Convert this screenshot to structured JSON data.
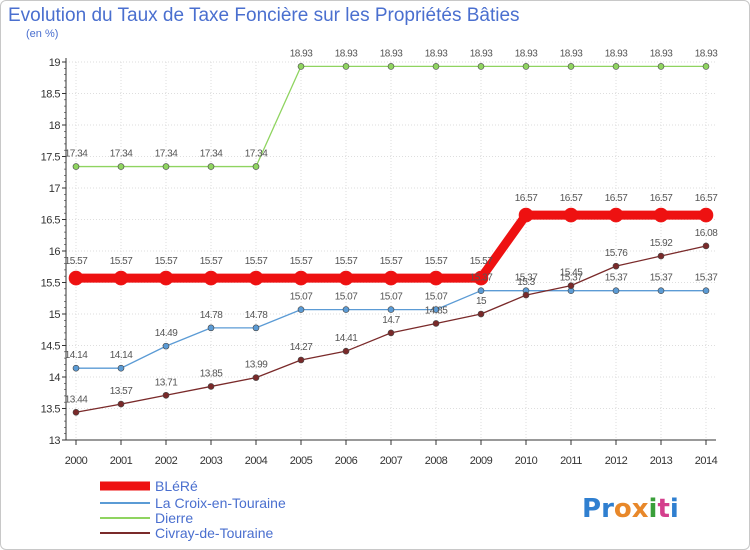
{
  "title": "Evolution du Taux de Taxe Foncière sur les Propriétés Bâties",
  "unit_label": "(en %)",
  "logo_text": "Proxiti",
  "chart_data": {
    "type": "line",
    "title": "Evolution du Taux de Taxe Foncière sur les Propriétés Bâties",
    "ylabel": "(en %)",
    "xlabel": "",
    "ylim": [
      13,
      19
    ],
    "yticks": [
      13,
      13.5,
      14,
      14.5,
      15,
      15.5,
      16,
      16.5,
      17,
      17.5,
      18,
      18.5,
      19
    ],
    "x": [
      2000,
      2001,
      2002,
      2003,
      2004,
      2005,
      2006,
      2007,
      2008,
      2009,
      2010,
      2011,
      2012,
      2013,
      2014
    ],
    "legend_position": "bottom-left",
    "series": [
      {
        "name": "BLéRé",
        "color": "#ee1111",
        "values": [
          15.57,
          15.57,
          15.57,
          15.57,
          15.57,
          15.57,
          15.57,
          15.57,
          15.57,
          15.57,
          16.57,
          16.57,
          16.57,
          16.57,
          16.57
        ]
      },
      {
        "name": "La Croix-en-Touraine",
        "color": "#5b9bd5",
        "values": [
          14.14,
          14.14,
          14.49,
          14.78,
          14.78,
          15.07,
          15.07,
          15.07,
          15.07,
          15.37,
          15.37,
          15.37,
          15.37,
          15.37,
          15.37
        ]
      },
      {
        "name": "Dierre",
        "color": "#8fd460",
        "values": [
          17.34,
          17.34,
          17.34,
          17.34,
          17.34,
          18.93,
          18.93,
          18.93,
          18.93,
          18.93,
          18.93,
          18.93,
          18.93,
          18.93,
          18.93
        ]
      },
      {
        "name": "Civray-de-Touraine",
        "color": "#7a2a2a",
        "values": [
          13.44,
          13.57,
          13.71,
          13.85,
          13.99,
          14.27,
          14.41,
          14.7,
          14.85,
          15.0,
          15.3,
          15.45,
          15.76,
          15.92,
          16.08
        ]
      }
    ],
    "data_labels": [
      [
        "15.57",
        "15.57",
        "15.57",
        "15.57",
        "15.57",
        "15.57",
        "15.57",
        "15.57",
        "15.57",
        "15.57",
        "16.57",
        "16.57",
        "16.57",
        "16.57",
        "16.57"
      ],
      [
        "14.14",
        "14.14",
        "14.49",
        "14.78",
        "14.78",
        "15.07",
        "15.07",
        "15.07",
        "15.07",
        "15.37",
        "15.37",
        "15.37",
        "15.37",
        "15.37",
        "15.37"
      ],
      [
        "17.34",
        "17.34",
        "17.34",
        "17.34",
        "17.34",
        "18.93",
        "18.93",
        "18.93",
        "18.93",
        "18.93",
        "18.93",
        "18.93",
        "18.93",
        "18.93",
        "18.93"
      ],
      [
        "13.44",
        "13.57",
        "13.71",
        "13.85",
        "13.99",
        "14.27",
        "14.41",
        "14.7",
        "14.85",
        "15",
        "15.3",
        "15.45",
        "15.76",
        "15.92",
        "16.08"
      ]
    ]
  }
}
